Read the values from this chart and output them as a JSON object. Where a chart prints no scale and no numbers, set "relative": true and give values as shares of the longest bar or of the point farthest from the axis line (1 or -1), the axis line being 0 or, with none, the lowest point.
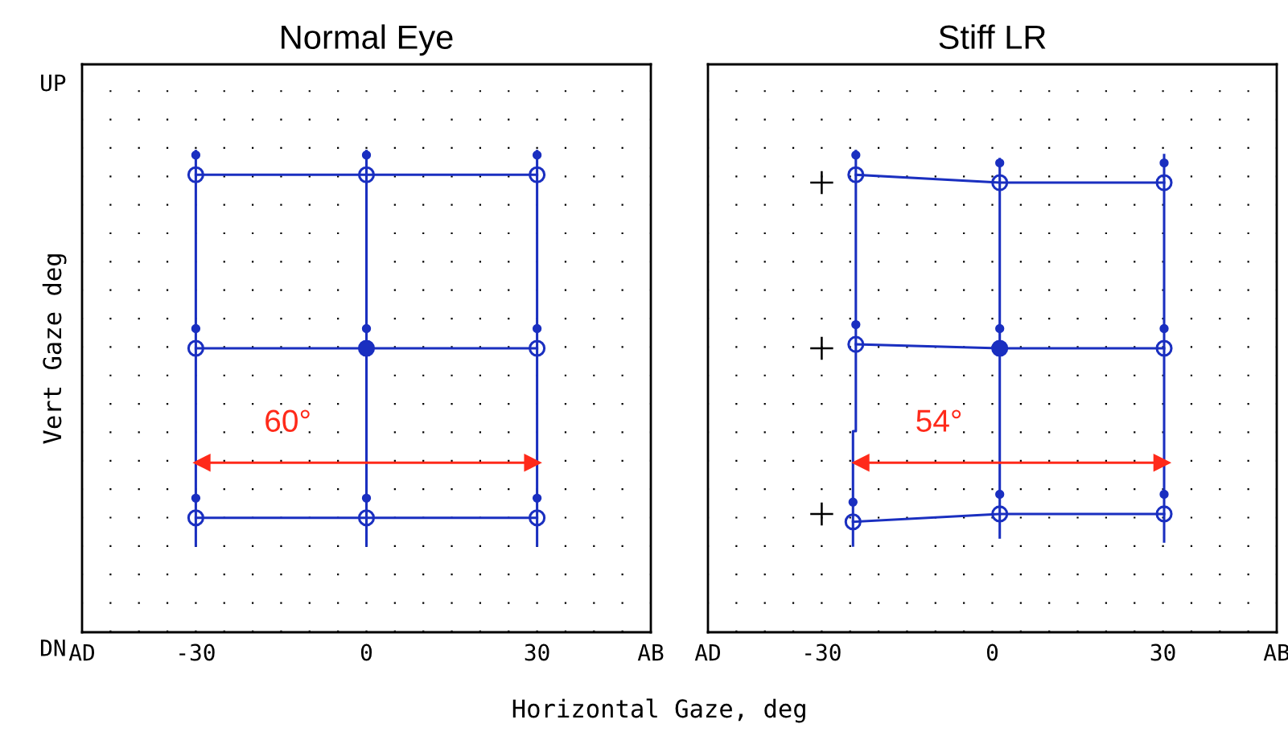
{
  "chart_data": [
    {
      "type": "line",
      "title": "Normal Eye",
      "xlabel": "Horizontal Gaze, deg",
      "ylabel": "Vert Gaze deg",
      "relative": true,
      "xlim": [
        -50,
        50
      ],
      "xticks": [
        {
          "value": -50,
          "label": "AD"
        },
        {
          "value": -45,
          "label": null
        },
        {
          "value": -40,
          "label": null
        },
        {
          "value": -35,
          "label": null
        },
        -30,
        {
          "value": -25,
          "label": null
        },
        {
          "value": -20,
          "label": null
        },
        {
          "value": -15,
          "label": null
        },
        {
          "value": -10,
          "label": null
        },
        {
          "value": -5,
          "label": null
        },
        0,
        {
          "value": 5,
          "label": null
        },
        {
          "value": 10,
          "label": null
        },
        {
          "value": 15,
          "label": null
        },
        {
          "value": 20,
          "label": null
        },
        {
          "value": 25,
          "label": null
        },
        30,
        {
          "value": 35,
          "label": null
        },
        {
          "value": 40,
          "label": null
        },
        {
          "value": 45,
          "label": null
        },
        {
          "value": 50,
          "label": "AB"
        }
      ],
      "grid": "x",
      "series": [
        {
          "color": "#1a2fc0",
          "marker": "circle",
          "x": [
            -30,
            0,
            30
          ],
          "values": [
            0.94,
            0.94,
            0.94
          ]
        },
        {
          "color": "#1a2fc0",
          "marker": "circle",
          "x": [
            -30,
            0,
            30
          ],
          "values": [
            0.5,
            0.5,
            0.5
          ]
        },
        {
          "color": "#1a2fc0",
          "marker": "circle",
          "x": [
            -30,
            0,
            30
          ],
          "values": [
            0.07,
            0.07,
            0.07
          ]
        },
        {
          "color": "#1a2fc0",
          "x": [
            -30,
            -30
          ],
          "values": [
            1,
            0
          ]
        },
        {
          "color": "#1a2fc0",
          "x": [
            0,
            0
          ],
          "values": [
            1,
            0
          ]
        },
        {
          "color": "#1a2fc0",
          "x": [
            30,
            30
          ],
          "values": [
            1,
            0
          ]
        },
        {
          "type": "scatter",
          "color": "#1a2fc0",
          "marker": "circle",
          "sizes": [
            1
          ],
          "x": [
            0
          ],
          "values": [
            0.5
          ]
        },
        {
          "type": "scatter",
          "color": "#1a2fc0",
          "marker": "circle",
          "sizes": [
            0.3,
            0.3,
            0.3,
            0.3,
            0.3,
            0.3,
            0.3,
            0.3,
            0.3
          ],
          "x": [
            -30,
            0,
            30,
            -30,
            0,
            30,
            -30,
            0,
            30
          ],
          "values": [
            0.99,
            0.99,
            0.99,
            0.55,
            0.55,
            0.55,
            0.12,
            0.12,
            0.12
          ]
        },
        {
          "color": "#ff2a1a",
          "marker": "triangle",
          "x": [
            -29,
            29.3
          ],
          "values": [
            0.21,
            0.21
          ]
        }
      ],
      "annotations": [
        "60°",
        "UP",
        "DN"
      ]
    },
    {
      "type": "line",
      "title": "Stiff LR",
      "tick_labels": "x",
      "relative": true,
      "xlim": [
        -50,
        50
      ],
      "xticks": [
        {
          "value": -50,
          "label": "AD"
        },
        {
          "value": -45,
          "label": null
        },
        {
          "value": -40,
          "label": null
        },
        {
          "value": -35,
          "label": null
        },
        -30,
        {
          "value": -25,
          "label": null
        },
        {
          "value": -20,
          "label": null
        },
        {
          "value": -15,
          "label": null
        },
        {
          "value": -10,
          "label": null
        },
        {
          "value": -5,
          "label": null
        },
        0,
        {
          "value": 5,
          "label": null
        },
        {
          "value": 10,
          "label": null
        },
        {
          "value": 15,
          "label": null
        },
        {
          "value": 20,
          "label": null
        },
        {
          "value": 25,
          "label": null
        },
        30,
        {
          "value": 35,
          "label": null
        },
        {
          "value": 40,
          "label": null
        },
        {
          "value": 45,
          "label": null
        },
        {
          "value": 50,
          "label": "AB"
        }
      ],
      "grid": "x",
      "series": [
        {
          "color": "#1a2fc0",
          "marker": "circle",
          "x": [
            -24,
            1.3,
            30.2
          ],
          "values": [
            0.94,
            0.92,
            0.92
          ]
        },
        {
          "color": "#1a2fc0",
          "marker": "circle",
          "x": [
            -24,
            1.3,
            30.2
          ],
          "values": [
            0.51,
            0.5,
            0.5
          ]
        },
        {
          "color": "#1a2fc0",
          "marker": "circle",
          "x": [
            -24.5,
            1.3,
            30.2
          ],
          "values": [
            0.06,
            0.08,
            0.08
          ]
        },
        {
          "color": "#1a2fc0",
          "x": [
            -24,
            -24,
            -24.5,
            -24.5
          ],
          "values": [
            1,
            0.29,
            0.29,
            0
          ]
        },
        {
          "color": "#1a2fc0",
          "x": [
            1.3,
            1.3
          ],
          "values": [
            0.98,
            0.02
          ]
        },
        {
          "color": "#1a2fc0",
          "x": [
            30.2,
            30.2
          ],
          "values": [
            0.99,
            0.01
          ]
        },
        {
          "type": "scatter",
          "color": "#1a2fc0",
          "marker": "circle",
          "sizes": [
            1
          ],
          "x": [
            1.3
          ],
          "values": [
            0.5
          ]
        },
        {
          "type": "scatter",
          "color": "#1a2fc0",
          "marker": "circle",
          "sizes": [
            0.3,
            0.3,
            0.3,
            0.3,
            0.3,
            0.3,
            0.3,
            0.3,
            0.3
          ],
          "x": [
            -24,
            1.3,
            30.2,
            -24,
            1.3,
            30.2,
            -24.5,
            1.3,
            30.2
          ],
          "values": [
            0.99,
            0.97,
            0.97,
            0.56,
            0.55,
            0.55,
            0.11,
            0.13,
            0.13
          ]
        },
        {
          "type": "scatter",
          "color": "#000000",
          "marker": "cross",
          "x": [
            -30,
            -30,
            -30
          ],
          "values": [
            0.92,
            0.5,
            0.08
          ]
        },
        {
          "color": "#ff2a1a",
          "marker": "triangle",
          "x": [
            -23.2,
            29.9
          ],
          "values": [
            0.21,
            0.21
          ]
        }
      ],
      "annotations": [
        "54°"
      ]
    }
  ]
}
